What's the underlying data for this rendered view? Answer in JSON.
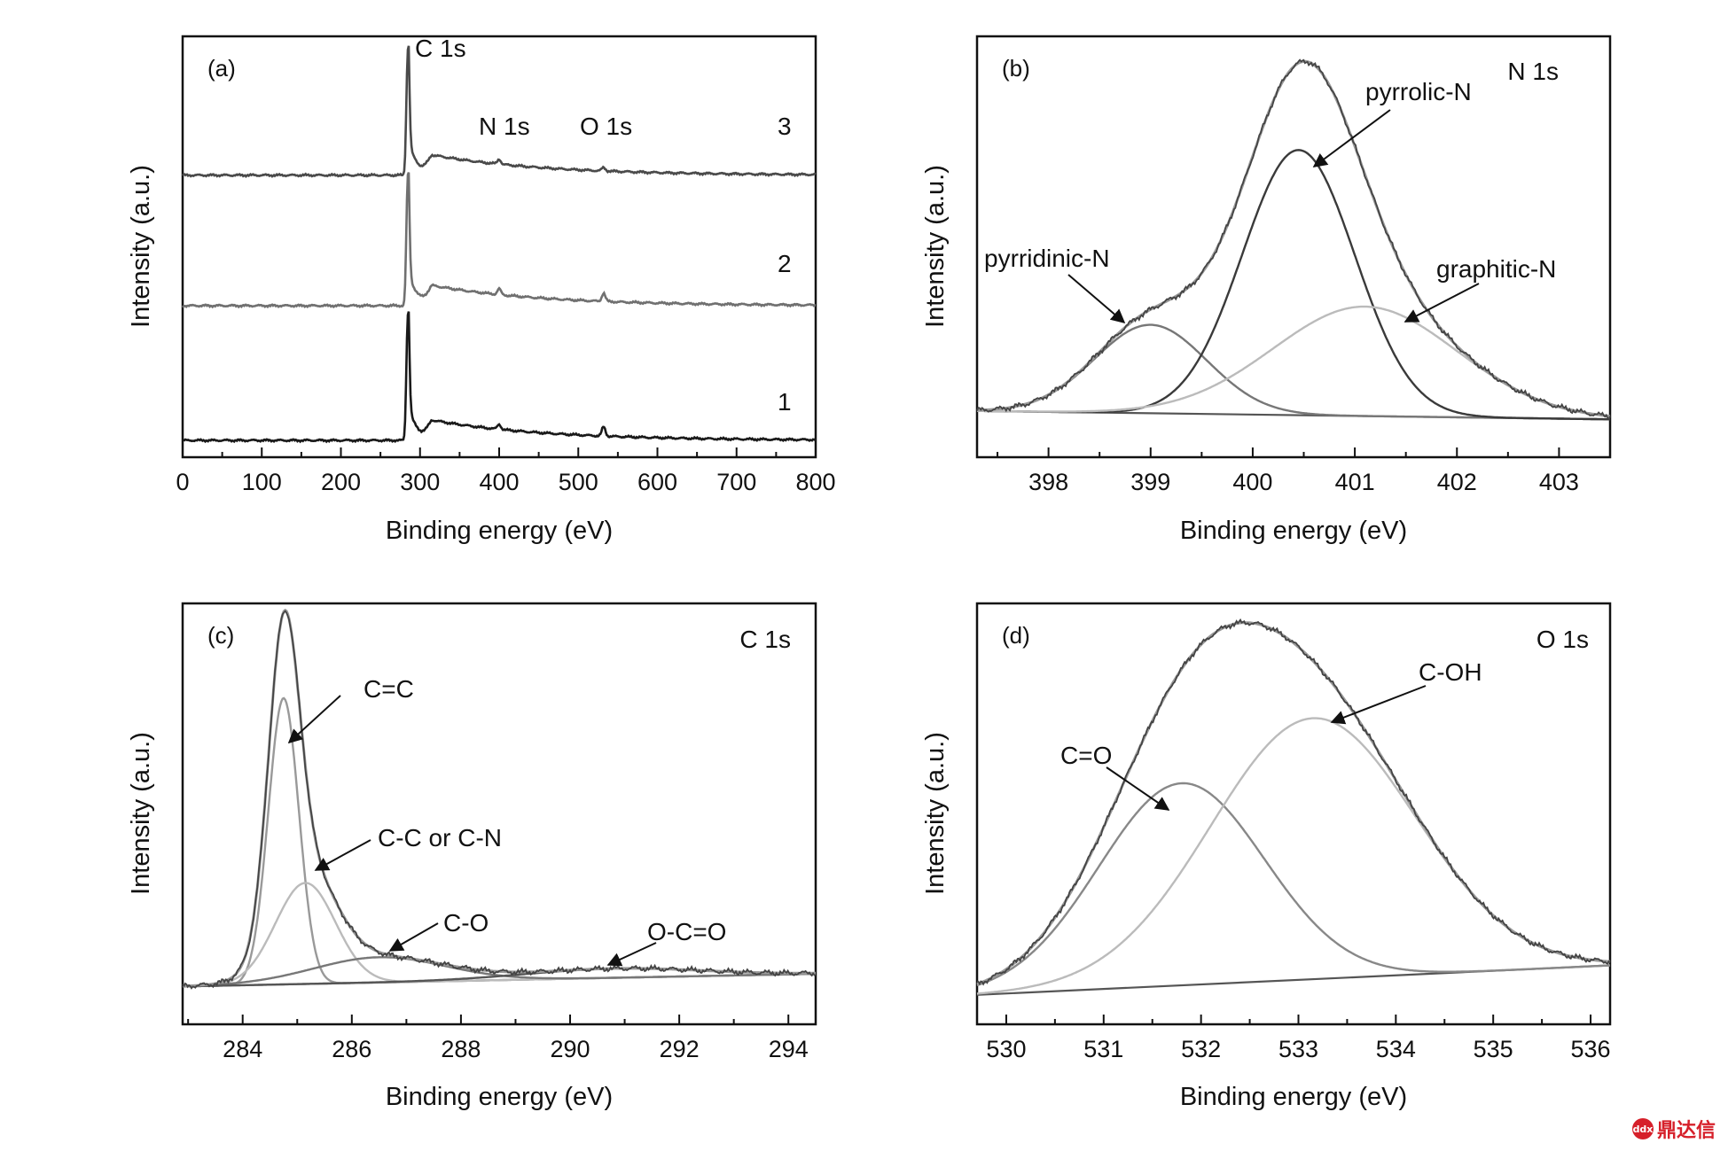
{
  "chart_data": [
    {
      "panel": "(a)",
      "type": "line",
      "title": "",
      "xlabel": "Binding energy (eV)",
      "ylabel": "Intensity (a.u.)",
      "xlim": [
        0,
        800
      ],
      "xticks": [
        0,
        100,
        200,
        300,
        400,
        500,
        600,
        700,
        800
      ],
      "annotations": [
        "C 1s",
        "N 1s",
        "O 1s"
      ],
      "series": [
        {
          "name": "1",
          "color": "#1a1a1a",
          "base": 0.04,
          "peaks": [
            [
              284.6,
              0.3
            ],
            [
              400,
              0.012
            ],
            [
              532,
              0.022
            ]
          ]
        },
        {
          "name": "2",
          "color": "#707070",
          "base": 0.36,
          "peaks": [
            [
              284.6,
              0.31
            ],
            [
              400,
              0.014
            ],
            [
              532,
              0.02
            ]
          ]
        },
        {
          "name": "3",
          "color": "#4a4a4a",
          "base": 0.67,
          "peaks": [
            [
              284.6,
              0.3
            ],
            [
              400,
              0.012
            ],
            [
              532,
              0.008
            ]
          ]
        }
      ]
    },
    {
      "panel": "(b)",
      "type": "line",
      "title": "N 1s",
      "xlabel": "Binding energy (eV)",
      "ylabel": "Intensity (a.u.)",
      "xlim": [
        397.3,
        403.5
      ],
      "xticks": [
        398,
        399,
        400,
        401,
        402,
        403
      ],
      "baseline": [
        [
          397.3,
          0.11
        ],
        [
          403.5,
          0.09
        ]
      ],
      "components": [
        {
          "name": "pyrridinic-N",
          "center": 399.0,
          "height": 0.21,
          "width": 0.55,
          "color": "#777777"
        },
        {
          "name": "pyrrolic-N",
          "center": 400.45,
          "height": 0.63,
          "width": 0.55,
          "color": "#3a3a3a"
        },
        {
          "name": "graphitic-N",
          "center": 401.1,
          "height": 0.26,
          "width": 0.9,
          "color": "#bbbbbb"
        }
      ],
      "envelope": "sum",
      "annotations": [
        "pyrridinic-N",
        "pyrrolic-N",
        "graphitic-N",
        "N 1s"
      ]
    },
    {
      "panel": "(c)",
      "type": "line",
      "title": "C 1s",
      "xlabel": "Binding energy (eV)",
      "ylabel": "Intensity (a.u.)",
      "xlim": [
        282.9,
        294.5
      ],
      "xticks": [
        284,
        286,
        288,
        290,
        292,
        294
      ],
      "baseline": [
        [
          282.9,
          0.09
        ],
        [
          294.5,
          0.12
        ]
      ],
      "components": [
        {
          "name": "C=C",
          "center": 284.75,
          "height": 0.68,
          "width": 0.28,
          "color": "#999999"
        },
        {
          "name": "C-C or C-N",
          "center": 285.15,
          "height": 0.24,
          "width": 0.55,
          "color": "#bbbbbb"
        },
        {
          "name": "C-O",
          "center": 286.5,
          "height": 0.06,
          "width": 1.2,
          "color": "#777777"
        },
        {
          "name": "O-C=O",
          "center": 290.8,
          "height": 0.022,
          "width": 1.6,
          "color": "#555555"
        }
      ],
      "envelope": "sum",
      "annotations": [
        "C=C",
        "C-C or C-N",
        "C-O",
        "O-C=O",
        "C 1s"
      ]
    },
    {
      "panel": "(d)",
      "type": "line",
      "title": "O 1s",
      "xlabel": "Binding energy (eV)",
      "ylabel": "Intensity (a.u.)",
      "xlim": [
        529.7,
        536.2
      ],
      "xticks": [
        530,
        531,
        532,
        533,
        534,
        535,
        536
      ],
      "baseline": [
        [
          529.7,
          0.07
        ],
        [
          536.2,
          0.14
        ]
      ],
      "components": [
        {
          "name": "C=O",
          "center": 531.8,
          "height": 0.48,
          "width": 0.85,
          "color": "#888888"
        },
        {
          "name": "C-OH",
          "center": 533.15,
          "height": 0.62,
          "width": 1.05,
          "color": "#bbbbbb"
        }
      ],
      "envelope": "sum",
      "annotations": [
        "C=O",
        "C-OH",
        "O 1s"
      ]
    }
  ],
  "watermark": {
    "icon": "ddx",
    "text": "鼎达信"
  }
}
